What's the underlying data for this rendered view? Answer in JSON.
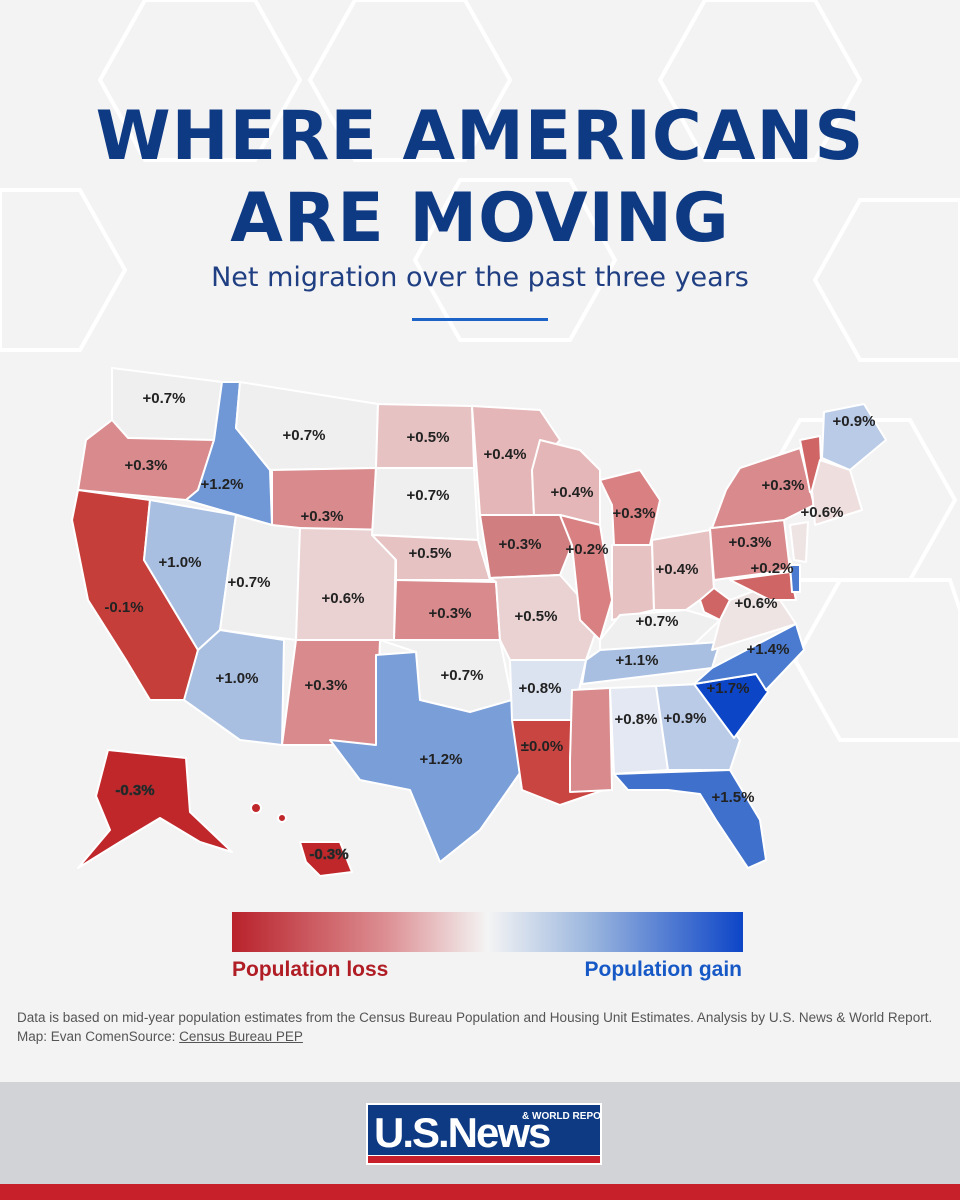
{
  "header": {
    "title_line1": "WHERE AMERICANS",
    "title_line2": "ARE MOVING",
    "subtitle": "Net migration over the past three years"
  },
  "colors": {
    "title": "#0e3a84",
    "loss_strong": "#c0392f",
    "loss_medium": "#d97d7f",
    "loss_light": "#e6b8b9",
    "neutral": "#f0f0f0",
    "gain_light": "#c9d6ec",
    "gain_medium": "#7b9fd8",
    "gain_strong": "#0d45c7",
    "footer_red": "#c8202a"
  },
  "states": [
    {
      "abbr": "WA",
      "label": "+0.7%"
    },
    {
      "abbr": "OR",
      "label": "+0.3%"
    },
    {
      "abbr": "CA",
      "label": "-0.1%"
    },
    {
      "abbr": "ID",
      "label": "+1.2%"
    },
    {
      "abbr": "NV",
      "label": "+1.0%"
    },
    {
      "abbr": "MT",
      "label": "+0.7%"
    },
    {
      "abbr": "WY",
      "label": "+0.3%"
    },
    {
      "abbr": "UT",
      "label": "+0.7%"
    },
    {
      "abbr": "AZ",
      "label": "+1.0%"
    },
    {
      "abbr": "CO",
      "label": "+0.6%"
    },
    {
      "abbr": "NM",
      "label": "+0.3%"
    },
    {
      "abbr": "ND",
      "label": "+0.5%"
    },
    {
      "abbr": "SD",
      "label": "+0.7%"
    },
    {
      "abbr": "NE",
      "label": "+0.5%"
    },
    {
      "abbr": "KS",
      "label": "+0.3%"
    },
    {
      "abbr": "OK",
      "label": "+0.7%"
    },
    {
      "abbr": "TX",
      "label": "+1.2%"
    },
    {
      "abbr": "MN",
      "label": "+0.4%"
    },
    {
      "abbr": "IA",
      "label": "+0.3%"
    },
    {
      "abbr": "MO",
      "label": "+0.5%"
    },
    {
      "abbr": "AR",
      "label": "+0.8%"
    },
    {
      "abbr": "LA",
      "label": "±0.0%"
    },
    {
      "abbr": "WI",
      "label": "+0.4%"
    },
    {
      "abbr": "IL",
      "label": "+0.2%"
    },
    {
      "abbr": "MI",
      "label": "+0.3%"
    },
    {
      "abbr": "OH",
      "label": "+0.4%"
    },
    {
      "abbr": "KY",
      "label": "+0.7%"
    },
    {
      "abbr": "TN",
      "label": "+1.1%"
    },
    {
      "abbr": "MS",
      "label": ""
    },
    {
      "abbr": "AL",
      "label": "+0.8%"
    },
    {
      "abbr": "GA",
      "label": "+0.9%"
    },
    {
      "abbr": "FL",
      "label": "+1.5%"
    },
    {
      "abbr": "SC",
      "label": "+1.7%"
    },
    {
      "abbr": "NC",
      "label": "+1.4%"
    },
    {
      "abbr": "VA",
      "label": "+0.6%"
    },
    {
      "abbr": "PA",
      "label": "+0.3%"
    },
    {
      "abbr": "NY",
      "label": "+0.3%"
    },
    {
      "abbr": "MD",
      "label": "+0.2%"
    },
    {
      "abbr": "NE-coast",
      "label": "+0.6%"
    },
    {
      "abbr": "ME",
      "label": "+0.9%"
    },
    {
      "abbr": "AK",
      "label": "-0.3%"
    },
    {
      "abbr": "HI",
      "label": "-0.3%"
    }
  ],
  "legend": {
    "loss_label": "Population loss",
    "gain_label": "Population gain"
  },
  "notes": {
    "line1": "Data is based on mid-year population estimates from the Census Bureau Population and Housing Unit Estimates. Analysis by U.S. News & World Report.",
    "line2_prefix": "Map: Evan ComenSource: ",
    "source_link": "Census Bureau PEP"
  },
  "logo": {
    "main": "U.S.News",
    "small_line1": "& WORLD REPORT"
  }
}
